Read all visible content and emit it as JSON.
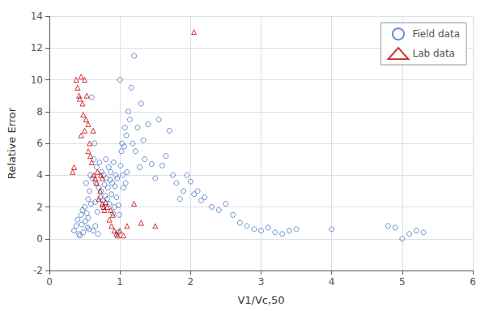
{
  "chart_data": {
    "type": "scatter",
    "xlabel": "V1/Vc,50",
    "ylabel": "Relative Error",
    "xlim": [
      0,
      6
    ],
    "ylim": [
      -2,
      14
    ],
    "xticks": [
      0,
      1,
      2,
      3,
      4,
      5,
      6
    ],
    "yticks": [
      -2,
      0,
      2,
      4,
      6,
      8,
      10,
      12,
      14
    ],
    "grid": true,
    "legend": "upper right",
    "series": [
      {
        "name": "Field data",
        "color": "#4472C4",
        "marker": "circle",
        "x": [
          0.35,
          0.38,
          0.4,
          0.42,
          0.43,
          0.45,
          0.46,
          0.47,
          0.48,
          0.5,
          0.51,
          0.52,
          0.53,
          0.54,
          0.55,
          0.55,
          0.56,
          0.57,
          0.58,
          0.59,
          0.6,
          0.61,
          0.62,
          0.63,
          0.64,
          0.65,
          0.65,
          0.66,
          0.67,
          0.68,
          0.69,
          0.7,
          0.71,
          0.72,
          0.73,
          0.74,
          0.75,
          0.76,
          0.77,
          0.78,
          0.79,
          0.8,
          0.81,
          0.82,
          0.83,
          0.84,
          0.85,
          0.86,
          0.87,
          0.88,
          0.89,
          0.9,
          0.91,
          0.92,
          0.93,
          0.94,
          0.95,
          0.96,
          0.97,
          0.98,
          0.99,
          1.0,
          1.01,
          1.02,
          1.03,
          1.04,
          1.05,
          1.06,
          1.07,
          1.08,
          1.09,
          1.1,
          1.12,
          1.14,
          1.16,
          1.18,
          1.2,
          1.22,
          1.25,
          1.28,
          1.3,
          1.33,
          1.35,
          1.4,
          1.45,
          1.5,
          1.55,
          1.6,
          1.65,
          1.7,
          1.75,
          1.8,
          1.85,
          1.9,
          1.95,
          2.0,
          2.05,
          2.1,
          2.15,
          2.2,
          2.3,
          2.4,
          2.5,
          2.6,
          2.7,
          2.8,
          2.9,
          3.0,
          3.1,
          3.2,
          3.3,
          3.4,
          3.5,
          4.0,
          4.8,
          4.9,
          5.0,
          5.1,
          5.2,
          5.3
        ],
        "values": [
          0.5,
          0.8,
          1.2,
          0.3,
          0.2,
          1.5,
          0.9,
          1.8,
          0.4,
          2.0,
          1.1,
          3.5,
          1.6,
          0.7,
          2.5,
          1.3,
          0.6,
          3.0,
          4.0,
          2.2,
          8.9,
          3.8,
          0.5,
          5.0,
          6.0,
          2.3,
          0.8,
          3.5,
          4.5,
          1.7,
          0.3,
          3.2,
          4.8,
          2.6,
          3.0,
          4.2,
          2.4,
          2.0,
          4.0,
          3.4,
          2.7,
          5.0,
          3.8,
          2.5,
          3.2,
          4.5,
          2.2,
          3.7,
          4.2,
          2.8,
          3.5,
          1.6,
          4.8,
          2.0,
          3.3,
          4.0,
          2.6,
          3.8,
          0.4,
          2.1,
          1.5,
          10.0,
          4.6,
          5.5,
          6.0,
          4.0,
          3.2,
          5.8,
          7.0,
          3.5,
          6.5,
          4.2,
          8.0,
          7.5,
          9.5,
          6.0,
          11.5,
          5.5,
          7.0,
          4.5,
          8.5,
          6.2,
          5.0,
          7.2,
          4.7,
          3.8,
          7.5,
          4.6,
          5.2,
          6.8,
          4.0,
          3.5,
          2.5,
          3.0,
          4.0,
          3.6,
          2.8,
          3.0,
          2.4,
          2.6,
          2.0,
          1.8,
          2.2,
          1.5,
          1.0,
          0.8,
          0.6,
          0.5,
          0.7,
          0.4,
          0.3,
          0.5,
          0.6,
          0.6,
          0.8,
          0.7,
          0.0,
          0.3,
          0.5,
          0.4
        ]
      },
      {
        "name": "Lab data",
        "color": "#CC0000",
        "marker": "triangle",
        "x": [
          0.33,
          0.35,
          0.38,
          0.4,
          0.42,
          0.43,
          0.45,
          0.45,
          0.47,
          0.48,
          0.5,
          0.5,
          0.52,
          0.53,
          0.55,
          0.55,
          0.57,
          0.58,
          0.6,
          0.62,
          0.63,
          0.65,
          0.67,
          0.68,
          0.7,
          0.72,
          0.73,
          0.75,
          0.75,
          0.77,
          0.78,
          0.8,
          0.82,
          0.85,
          0.87,
          0.88,
          0.9,
          0.92,
          0.95,
          0.97,
          1.0,
          1.05,
          1.1,
          1.2,
          1.3,
          1.5,
          2.05
        ],
        "values": [
          4.2,
          4.5,
          10.0,
          9.5,
          9.0,
          8.8,
          6.5,
          10.2,
          8.5,
          7.8,
          10.0,
          6.8,
          7.5,
          9.0,
          7.2,
          5.5,
          6.0,
          5.2,
          4.8,
          6.8,
          4.0,
          3.8,
          3.5,
          4.2,
          2.5,
          3.0,
          4.0,
          2.2,
          3.8,
          2.0,
          1.8,
          2.3,
          2.0,
          1.2,
          1.8,
          0.8,
          1.5,
          0.5,
          0.3,
          0.2,
          0.5,
          0.2,
          0.8,
          2.2,
          1.0,
          0.8,
          13.0
        ]
      }
    ]
  }
}
